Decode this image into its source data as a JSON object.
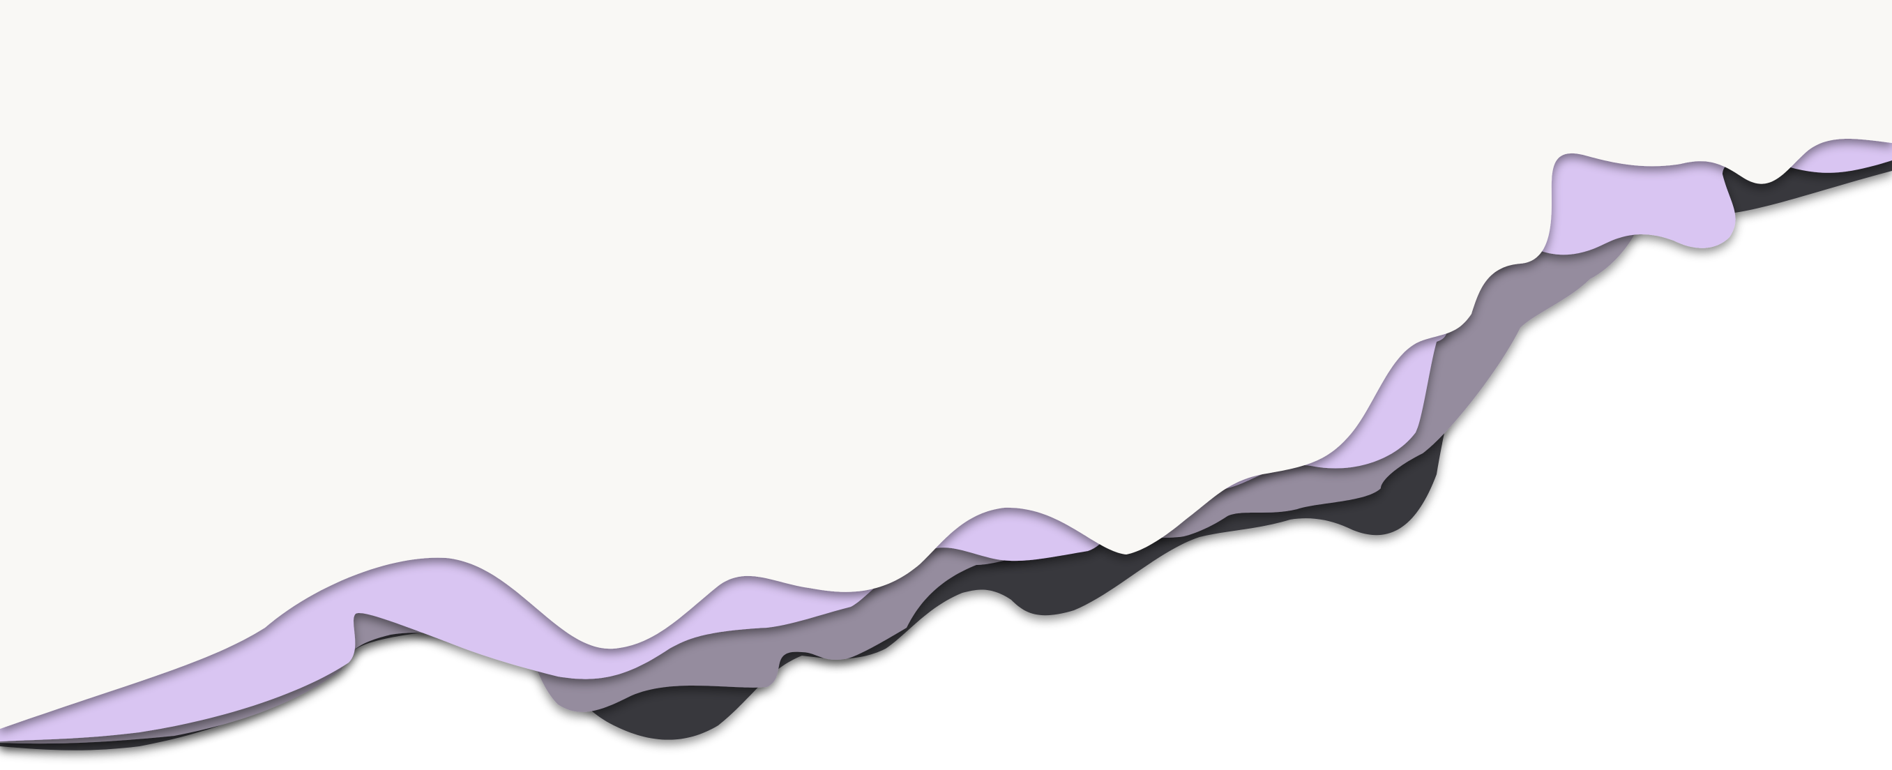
{
  "scene": {
    "description_free": true,
    "colors": {
      "background": "#ffffff",
      "top_paper": "#f9f8f5",
      "lavender": "#d9c5f2",
      "mauve_gray": "#958c9e",
      "charcoal": "#39383e",
      "shadow": "#000000"
    },
    "layers": [
      {
        "name": "charcoal-layer",
        "color_key": "charcoal"
      },
      {
        "name": "mauve-layer",
        "color_key": "mauve_gray"
      },
      {
        "name": "lavender-layer",
        "color_key": "lavender"
      },
      {
        "name": "paper-layer",
        "color_key": "top_paper"
      }
    ]
  }
}
